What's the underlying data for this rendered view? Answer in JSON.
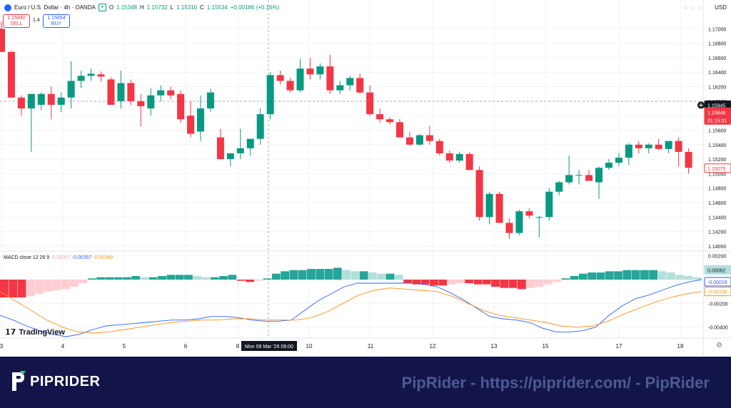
{
  "header": {
    "symbol": "Euro / U.S. Dollar · 4h · OANDA",
    "open_label": "O",
    "open": "1.15348",
    "high_label": "H",
    "high": "1.15732",
    "low_label": "L",
    "low": "1.15310",
    "close_label": "C",
    "close": "1.15534",
    "change": "+0.00186 (+0.16%)"
  },
  "trade": {
    "sell_price": "1.15840",
    "sell_label": "SELL",
    "spread": "1.4",
    "buy_price": "1.15854",
    "buy_label": "BUY"
  },
  "currency": "USD",
  "price_axis": [
    "1.17000",
    "1.16800",
    "1.16600",
    "1.16400",
    "1.16200",
    "1.16000",
    "1.15800",
    "1.15600",
    "1.15400",
    "1.15200",
    "1.15000",
    "1.14800",
    "1.14600",
    "1.14400",
    "1.14200",
    "1.14000"
  ],
  "price_tags": {
    "crosshair": "1.15945",
    "last": "1.15848",
    "countdown": "01:15:31",
    "low_marker": "1.15075"
  },
  "macd": {
    "label": "MACD close 12 26 9",
    "hist": "-0.00007",
    "macd": "-0.00357",
    "signal": "-0.00349",
    "axis": [
      "0.00200",
      "0.00000",
      "-0.00200",
      "-0.00400"
    ],
    "tags": {
      "hist": "0.00082",
      "macd": "-0.00018",
      "signal": "-0.00100"
    }
  },
  "time_axis": [
    "3",
    "4",
    "5",
    "6",
    "8",
    "10",
    "11",
    "12",
    "13",
    "15",
    "17",
    "18"
  ],
  "crosshair_time": "Mon 09 Mar '26   09:00",
  "tv_logo": "TradingView",
  "banner": {
    "brand": "PIPRIDER",
    "text": "PipRider - https://piprider.com/ - PipRider"
  },
  "colors": {
    "up": "#089981",
    "down": "#f23645",
    "macd_line": "#2962ff",
    "signal_line": "#f7931a",
    "banner_bg": "#13154a"
  },
  "chart_data": [
    {
      "type": "candlestick",
      "title": "Euro / U.S. Dollar · 4h · OANDA",
      "ylim": [
        1.1395,
        1.172
      ],
      "x_ticks": [
        "3",
        "4",
        "5",
        "6",
        "8",
        "10",
        "11",
        "12",
        "13",
        "15",
        "17",
        "18"
      ],
      "candles": [
        [
          1.17,
          1.171,
          1.167,
          1.1668
        ],
        [
          1.1668,
          1.167,
          1.1605,
          1.1605
        ],
        [
          1.1605,
          1.1608,
          1.158,
          1.159
        ],
        [
          1.159,
          1.161,
          1.153,
          1.161
        ],
        [
          1.1595,
          1.1612,
          1.1588,
          1.161
        ],
        [
          1.161,
          1.162,
          1.1575,
          1.1595
        ],
        [
          1.1595,
          1.1612,
          1.1585,
          1.1605
        ],
        [
          1.1605,
          1.1655,
          1.159,
          1.1628
        ],
        [
          1.1628,
          1.1642,
          1.1618,
          1.1635
        ],
        [
          1.1635,
          1.1645,
          1.1628,
          1.1638
        ],
        [
          1.1637,
          1.1641,
          1.1627,
          1.1634
        ],
        [
          1.163,
          1.1633,
          1.1595,
          1.1595
        ],
        [
          1.16,
          1.1642,
          1.159,
          1.1625
        ],
        [
          1.1625,
          1.163,
          1.1595,
          1.16
        ],
        [
          1.16,
          1.161,
          1.1565,
          1.1593
        ],
        [
          1.159,
          1.1618,
          1.158,
          1.1608
        ],
        [
          1.1608,
          1.1622,
          1.16,
          1.1615
        ],
        [
          1.1615,
          1.162,
          1.1603,
          1.1608
        ],
        [
          1.161,
          1.1615,
          1.157,
          1.1575
        ],
        [
          1.158,
          1.16,
          1.155,
          1.1555
        ],
        [
          1.1558,
          1.1608,
          1.1545,
          1.159
        ],
        [
          1.159,
          1.1617,
          1.1585,
          1.1612
        ],
        [
          1.155,
          1.1562,
          1.152,
          1.152
        ],
        [
          1.152,
          1.1528,
          1.151,
          1.1528
        ],
        [
          1.1528,
          1.1562,
          1.152,
          1.1535
        ],
        [
          1.1535,
          1.1547,
          1.1525,
          1.1548
        ],
        [
          1.1548,
          1.159,
          1.154,
          1.1582
        ],
        [
          1.1582,
          1.164,
          1.1575,
          1.1636
        ],
        [
          1.1636,
          1.1642,
          1.1623,
          1.1628
        ],
        [
          1.1628,
          1.1632,
          1.1612,
          1.1615
        ],
        [
          1.1615,
          1.1658,
          1.1612,
          1.1645
        ],
        [
          1.1645,
          1.166,
          1.163,
          1.1637
        ],
        [
          1.1637,
          1.1652,
          1.163,
          1.1648
        ],
        [
          1.1648,
          1.1664,
          1.161,
          1.1615
        ],
        [
          1.1615,
          1.1628,
          1.161,
          1.1622
        ],
        [
          1.1622,
          1.1635,
          1.1615,
          1.1632
        ],
        [
          1.1632,
          1.1638,
          1.161,
          1.1612
        ],
        [
          1.1612,
          1.1622,
          1.158,
          1.1582
        ],
        [
          1.1582,
          1.159,
          1.157,
          1.1575
        ],
        [
          1.1575,
          1.1578,
          1.1568,
          1.1571
        ],
        [
          1.1571,
          1.1575,
          1.155,
          1.155
        ],
        [
          1.155,
          1.1558,
          1.1538,
          1.154
        ],
        [
          1.154,
          1.1555,
          1.1538,
          1.1553
        ],
        [
          1.1553,
          1.1566,
          1.154,
          1.1545
        ],
        [
          1.1545,
          1.1548,
          1.1525,
          1.1528
        ],
        [
          1.1528,
          1.1532,
          1.1515,
          1.1518
        ],
        [
          1.1518,
          1.153,
          1.1515,
          1.1527
        ],
        [
          1.1527,
          1.153,
          1.1505,
          1.1505
        ],
        [
          1.1505,
          1.151,
          1.1435,
          1.144
        ],
        [
          1.144,
          1.1475,
          1.143,
          1.1472
        ],
        [
          1.1472,
          1.1475,
          1.1432,
          1.1432
        ],
        [
          1.1432,
          1.1438,
          1.141,
          1.1418
        ],
        [
          1.1418,
          1.145,
          1.1415,
          1.1448
        ],
        [
          1.1448,
          1.1452,
          1.1438,
          1.1442
        ],
        [
          1.144,
          1.1442,
          1.1412,
          1.144
        ],
        [
          1.144,
          1.148,
          1.1435,
          1.1475
        ],
        [
          1.1475,
          1.149,
          1.147,
          1.1488
        ],
        [
          1.1488,
          1.1525,
          1.1485,
          1.1498
        ],
        [
          1.1498,
          1.1505,
          1.1485,
          1.1498
        ],
        [
          1.1498,
          1.1505,
          1.149,
          1.149
        ],
        [
          1.1488,
          1.151,
          1.1465,
          1.1508
        ],
        [
          1.1508,
          1.152,
          1.1505,
          1.1515
        ],
        [
          1.1515,
          1.1528,
          1.151,
          1.1522
        ],
        [
          1.1522,
          1.1542,
          1.1512,
          1.154
        ],
        [
          1.154,
          1.1545,
          1.1528,
          1.1535
        ],
        [
          1.1535,
          1.1542,
          1.1528,
          1.154
        ],
        [
          1.154,
          1.1548,
          1.1532,
          1.1534
        ],
        [
          1.1534,
          1.1545,
          1.1528,
          1.1545
        ],
        [
          1.1545,
          1.155,
          1.151,
          1.153
        ],
        [
          1.153,
          1.1535,
          1.15,
          1.1508
        ]
      ]
    },
    {
      "type": "macd",
      "title": "MACD close 12 26 9",
      "ylim": [
        -0.0048,
        0.0024
      ],
      "histogram": [
        -0.0015,
        -0.0015,
        -0.0015,
        -0.0014,
        -0.0012,
        -0.001,
        -0.0009,
        -0.0008,
        -0.0006,
        -0.0003,
        0.0001,
        0.0002,
        0.0002,
        0.0002,
        0.0002,
        0.0003,
        0.0002,
        0.0002,
        0.0003,
        0.0004,
        0.0004,
        0.0004,
        0.0003,
        0.0002,
        0.0002,
        0.0003,
        0.0004,
        -0.0001,
        -0.0002,
        -0.0001,
        0.0001,
        0.0005,
        0.0007,
        0.0008,
        0.0008,
        0.0009,
        0.0009,
        0.0009,
        0.001,
        0.0008,
        0.0007,
        0.0007,
        0.0006,
        0.0005,
        0.0005,
        0.0004,
        -0.0003,
        -0.0004,
        -0.0004,
        -0.0005,
        -0.0005,
        -0.0004,
        -0.0003,
        -0.0003,
        -0.0004,
        -0.0004,
        -0.0006,
        -0.0007,
        -0.0007,
        -0.0008,
        -0.0007,
        -0.0006,
        -0.0004,
        -0.0002,
        0.0001,
        0.0003,
        0.0005,
        0.0006,
        0.0006,
        0.0007,
        0.0007,
        0.0008,
        0.0008,
        0.0008,
        0.0008,
        0.0007,
        0.0006,
        0.0004,
        0.0003,
        0.0002
      ],
      "macd_line": [
        -0.003,
        -0.0034,
        -0.0039,
        -0.0043,
        -0.0046,
        -0.0048,
        -0.0046,
        -0.0042,
        -0.0039,
        -0.0038,
        -0.0037,
        -0.0036,
        -0.0035,
        -0.0034,
        -0.0034,
        -0.0033,
        -0.0031,
        -0.0031,
        -0.0032,
        -0.0034,
        -0.0035,
        -0.0035,
        -0.0034,
        -0.0026,
        -0.0018,
        -0.0012,
        -0.0006,
        -0.0003,
        -0.0003,
        -0.0003,
        -0.0003,
        -0.0003,
        -0.0004,
        -0.0006,
        -0.0011,
        -0.0017,
        -0.0024,
        -0.0031,
        -0.0033,
        -0.0034,
        -0.0036,
        -0.0041,
        -0.0044,
        -0.0044,
        -0.0043,
        -0.004,
        -0.003,
        -0.0022,
        -0.0016,
        -0.0013,
        -0.0009,
        -0.0005,
        -0.0002,
        0.0
      ],
      "signal_line": [
        -0.001,
        -0.0018,
        -0.0026,
        -0.0034,
        -0.004,
        -0.0044,
        -0.0045,
        -0.0044,
        -0.0042,
        -0.004,
        -0.0038,
        -0.0036,
        -0.0035,
        -0.0034,
        -0.0034,
        -0.0033,
        -0.0033,
        -0.0034,
        -0.0034,
        -0.0034,
        -0.0032,
        -0.0027,
        -0.002,
        -0.0013,
        -0.0009,
        -0.0007,
        -0.0008,
        -0.0009,
        -0.001,
        -0.0014,
        -0.002,
        -0.0026,
        -0.003,
        -0.0032,
        -0.0034,
        -0.0036,
        -0.0039,
        -0.004,
        -0.0039,
        -0.0035,
        -0.0029,
        -0.0024,
        -0.0019,
        -0.0015,
        -0.0012,
        -0.001
      ]
    }
  ]
}
